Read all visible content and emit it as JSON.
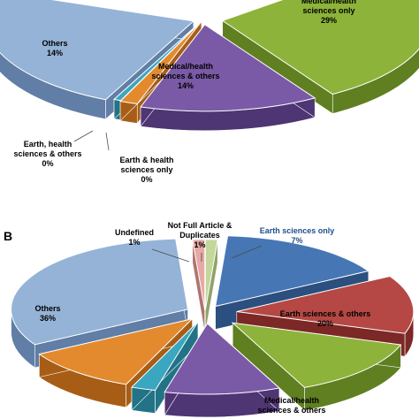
{
  "chart_data": [
    {
      "type": "pie",
      "panel": "",
      "slices": [
        {
          "label": "Medical/health\nsciences only",
          "value": 29,
          "value_label": "29%",
          "color": "#8db33a",
          "side": "#5f7f21"
        },
        {
          "label": "Medical/health\nsciences & others",
          "value": 14,
          "value_label": "14%",
          "color": "#7a5aa6",
          "side": "#4e3573"
        },
        {
          "label": "Earth & health\nsciences only",
          "value": 0,
          "value_label": "0%",
          "color": "#e38a2f",
          "side": "#a85d16"
        },
        {
          "label": "Earth, health\nsciences & others",
          "value": 0,
          "value_label": "0%",
          "color": "#3aa6c0",
          "side": "#227386"
        },
        {
          "label": "Others",
          "value": 14,
          "value_label": "14%",
          "color": "#95b3d7",
          "side": "#607ea6"
        }
      ]
    },
    {
      "type": "pie",
      "panel": "B",
      "slices": [
        {
          "label": "Earth sciences only",
          "value": 7,
          "value_label": "7%",
          "color": "#4677b4",
          "side": "#2b4f7e"
        },
        {
          "label": "Earth sciences & others",
          "value": 20,
          "value_label": "20%",
          "color": "#b54844",
          "side": "#7c2826"
        },
        {
          "label": "",
          "value": null,
          "value_label": "",
          "color": "#8db33a",
          "side": "#5f7f21"
        },
        {
          "label": "Medical/health\nsciences & others",
          "value": null,
          "value_label": "",
          "color": "#7a5aa6",
          "side": "#4e3573"
        },
        {
          "label": "",
          "value": null,
          "value_label": "",
          "color": "#3aa6c0",
          "side": "#227386"
        },
        {
          "label": "",
          "value": null,
          "value_label": "",
          "color": "#e38a2f",
          "side": "#a85d16"
        },
        {
          "label": "Others",
          "value": 36,
          "value_label": "36%",
          "color": "#95b3d7",
          "side": "#607ea6"
        },
        {
          "label": "Undefined",
          "value": 1,
          "value_label": "1%",
          "color": "#e6a9a5",
          "side": "#b07470"
        },
        {
          "label": "Not Full Article &\nDuplicates",
          "value": 1,
          "value_label": "1%",
          "color": "#c4d79b",
          "side": "#8fa469"
        }
      ]
    }
  ]
}
